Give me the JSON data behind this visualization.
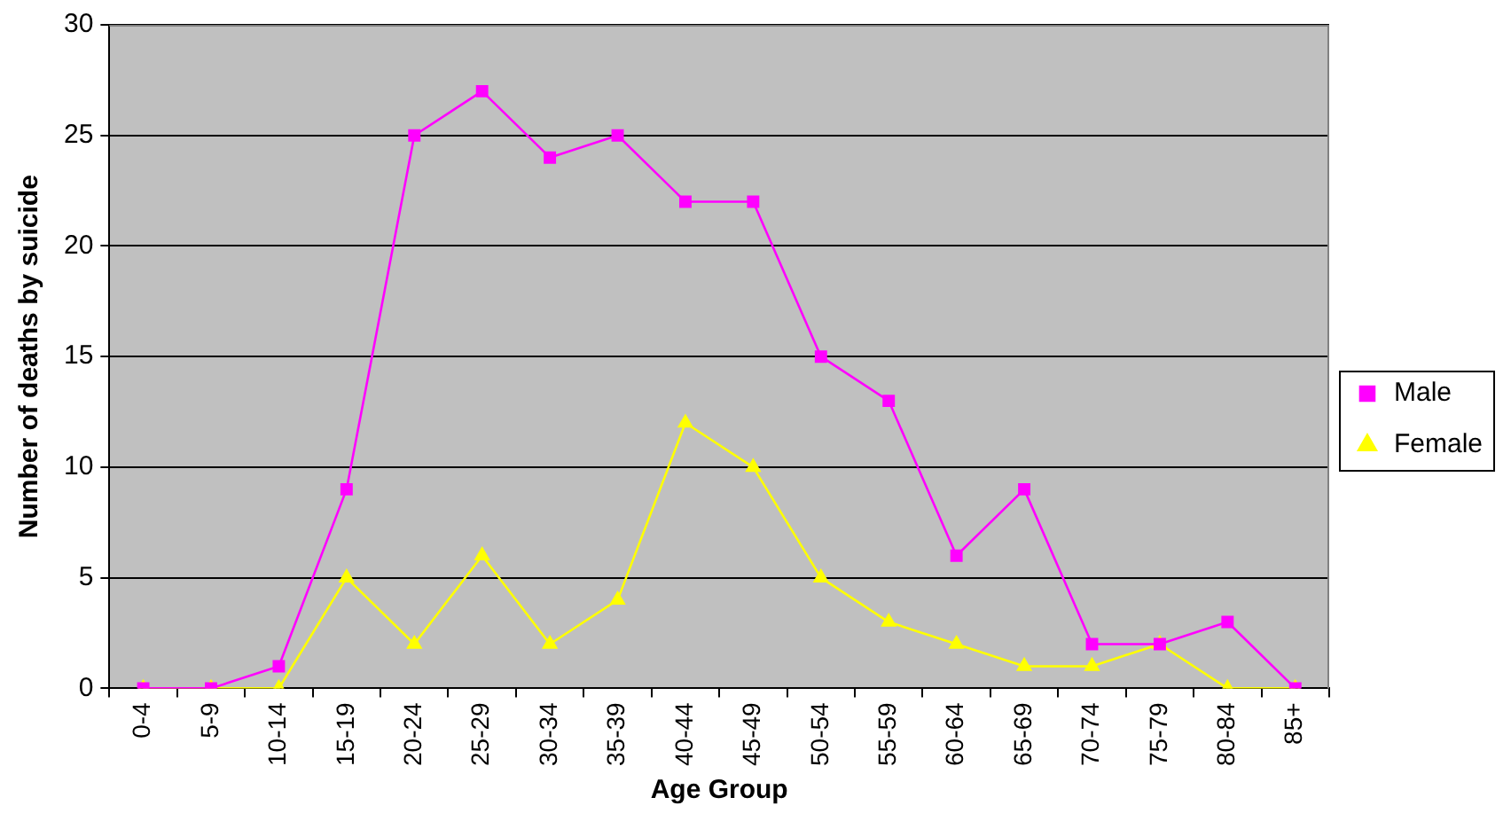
{
  "chart_data": {
    "type": "line",
    "xlabel": "Age Group",
    "ylabel": "Number of deaths by suicide",
    "categories": [
      "0-4",
      "5-9",
      "10-14",
      "15-19",
      "20-24",
      "25-29",
      "30-34",
      "35-39",
      "40-44",
      "45-49",
      "50-54",
      "55-59",
      "60-64",
      "65-69",
      "70-74",
      "75-79",
      "80-84",
      "85+"
    ],
    "series": [
      {
        "name": "Male",
        "color": "#ff00ff",
        "marker": "square",
        "values": [
          0,
          0,
          1,
          9,
          25,
          27,
          24,
          25,
          22,
          22,
          15,
          13,
          6,
          9,
          2,
          2,
          3,
          0
        ]
      },
      {
        "name": "Female",
        "color": "#ffff00",
        "marker": "triangle",
        "values": [
          0,
          0,
          0,
          5,
          2,
          6,
          2,
          4,
          12,
          10,
          5,
          3,
          2,
          1,
          1,
          2,
          0,
          0
        ]
      }
    ],
    "ylim": [
      0,
      30
    ],
    "yticks": [
      0,
      5,
      10,
      15,
      20,
      25,
      30
    ],
    "grid": "y",
    "legend": "right",
    "line_style": "solid"
  }
}
